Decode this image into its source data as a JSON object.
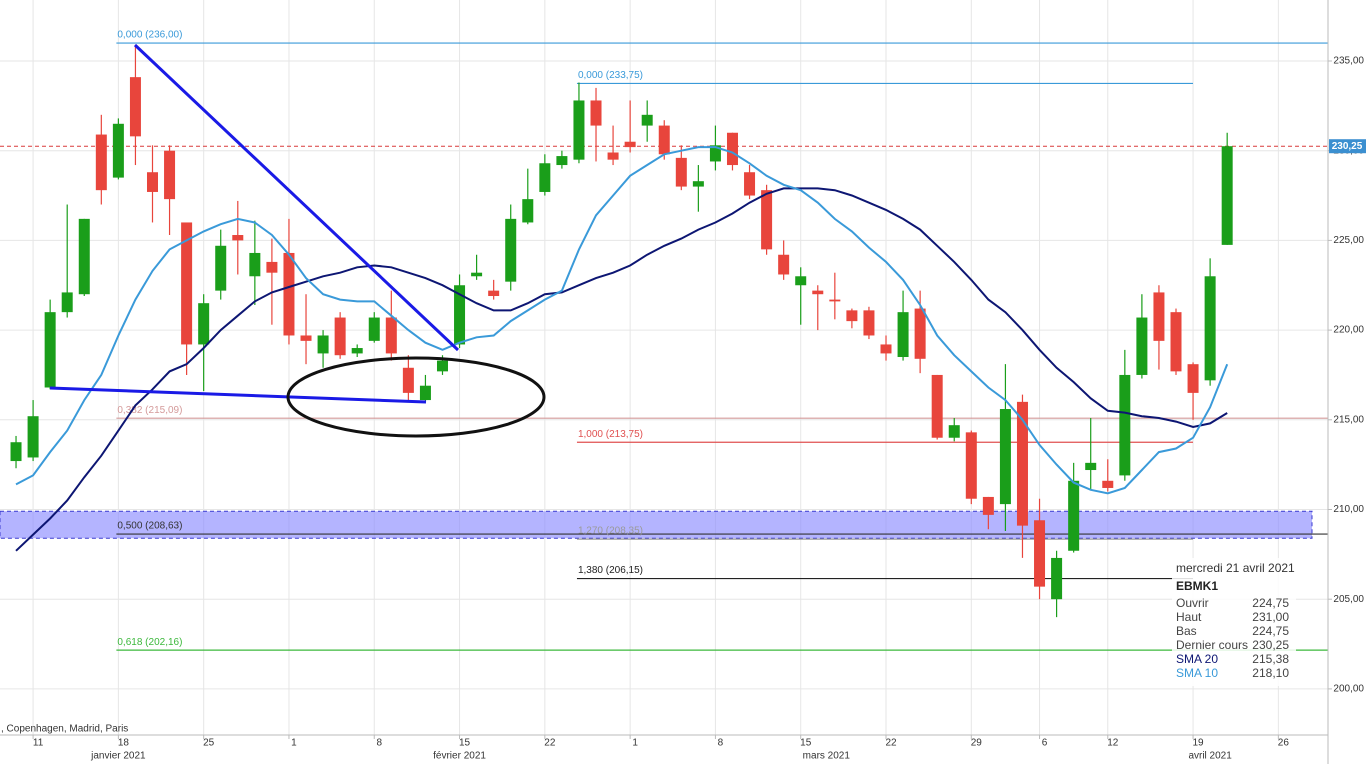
{
  "chart_data": {
    "type": "candlestick",
    "categories": [
      null,
      "11",
      null,
      null,
      null,
      null,
      "18",
      null,
      null,
      null,
      null,
      "25",
      null,
      null,
      null,
      null,
      "1",
      null,
      null,
      null,
      null,
      "8",
      null,
      null,
      null,
      null,
      "15",
      null,
      null,
      null,
      null,
      "22",
      null,
      null,
      null,
      null,
      "1",
      null,
      null,
      null,
      null,
      "8",
      null,
      null,
      null,
      null,
      "15",
      null,
      null,
      null,
      null,
      "22",
      null,
      null,
      null,
      null,
      "29",
      null,
      null,
      null,
      "6",
      null,
      null,
      null,
      "12",
      null,
      null,
      null,
      null,
      "19",
      null,
      null,
      null,
      null,
      "26",
      null,
      null
    ],
    "months": [
      "janvier 2021",
      "février 2021",
      "mars 2021",
      "avril 2021"
    ],
    "open": [
      212.7,
      212.9,
      216.8,
      221.0,
      222.0,
      230.9,
      228.5,
      234.1,
      228.8,
      230.0,
      226.0,
      219.2,
      222.2,
      225.3,
      223.0,
      223.8,
      224.3,
      219.7,
      218.7,
      220.7,
      218.7,
      219.4,
      220.7,
      217.9,
      216.1,
      217.7,
      219.2,
      223.0,
      222.2,
      222.7,
      226.0,
      227.7,
      229.2,
      229.5,
      232.8,
      229.9,
      230.5,
      231.4,
      231.4,
      229.6,
      228.0,
      229.4,
      231.0,
      228.8,
      227.8,
      224.2,
      222.5,
      222.2,
      221.7,
      221.1,
      221.1,
      219.2,
      218.5,
      221.2,
      217.5,
      214.0,
      214.3,
      210.7,
      210.3,
      216.0,
      209.4,
      205.0,
      207.7,
      212.2,
      211.6,
      211.9,
      217.5,
      222.1,
      221.0,
      218.1,
      217.2,
      224.75,
      null,
      null,
      null,
      null,
      null
    ],
    "high": [
      214.1,
      216.1,
      221.7,
      227.0,
      226.2,
      232.0,
      231.8,
      235.9,
      230.3,
      230.3,
      226.0,
      222.0,
      225.6,
      227.2,
      226.1,
      225.1,
      226.2,
      222.0,
      220.0,
      221.0,
      219.2,
      221.0,
      222.2,
      218.6,
      217.5,
      218.6,
      223.1,
      224.2,
      222.8,
      227.0,
      229.0,
      229.8,
      230.0,
      233.8,
      233.5,
      231.4,
      232.8,
      232.8,
      231.7,
      230.3,
      229.2,
      231.4,
      231.0,
      229.2,
      228.1,
      225.0,
      223.5,
      222.5,
      223.2,
      221.2,
      221.3,
      219.7,
      222.2,
      222.2,
      217.5,
      215.1,
      214.4,
      210.7,
      218.1,
      216.4,
      210.6,
      207.7,
      212.6,
      215.1,
      212.8,
      218.9,
      222.0,
      222.5,
      221.2,
      218.2,
      224.0,
      231.0,
      null,
      null,
      null,
      null,
      null
    ],
    "low": [
      212.3,
      212.7,
      216.7,
      220.7,
      221.9,
      227.0,
      228.4,
      229.2,
      226.0,
      225.3,
      217.5,
      216.6,
      221.7,
      223.1,
      221.4,
      220.3,
      219.2,
      218.1,
      217.9,
      218.4,
      218.5,
      219.3,
      218.3,
      216.1,
      216.0,
      217.5,
      219.0,
      222.8,
      221.7,
      222.2,
      225.9,
      227.5,
      229.0,
      229.3,
      229.4,
      229.2,
      229.9,
      230.5,
      229.5,
      227.8,
      226.6,
      228.9,
      228.9,
      227.3,
      224.2,
      222.8,
      220.3,
      220.0,
      220.6,
      220.1,
      219.5,
      218.3,
      218.3,
      217.6,
      213.9,
      213.8,
      210.3,
      208.9,
      208.8,
      207.3,
      205.0,
      204.0,
      207.6,
      211.1,
      211.0,
      211.6,
      217.3,
      217.8,
      217.5,
      215.0,
      216.9,
      224.75,
      null,
      null,
      null,
      null,
      null
    ],
    "close": [
      213.75,
      215.2,
      221.0,
      222.1,
      226.2,
      227.8,
      231.5,
      230.8,
      227.7,
      227.3,
      219.2,
      221.5,
      224.7,
      225.0,
      224.3,
      223.2,
      219.7,
      219.4,
      219.7,
      218.6,
      219.0,
      220.7,
      218.7,
      216.5,
      216.9,
      218.3,
      222.5,
      223.2,
      221.9,
      226.2,
      227.3,
      229.3,
      229.7,
      232.8,
      231.4,
      229.5,
      230.2,
      232.0,
      229.8,
      228.0,
      228.3,
      230.3,
      229.2,
      227.5,
      224.5,
      223.1,
      223.0,
      222.0,
      221.6,
      220.5,
      219.7,
      218.7,
      221.0,
      218.4,
      214.0,
      214.7,
      210.6,
      209.7,
      215.6,
      209.1,
      205.7,
      207.3,
      211.6,
      212.6,
      211.2,
      217.5,
      220.7,
      219.4,
      217.7,
      216.5,
      223.0,
      230.25,
      null,
      null,
      null,
      null,
      null
    ],
    "up_color": "#1a9e1a",
    "down_color": "#e8453c",
    "series": [
      {
        "name": "SMA 20",
        "color": "#0d1673",
        "values": [
          207.7,
          208.6,
          209.5,
          210.5,
          211.8,
          213.0,
          214.4,
          215.8,
          216.7,
          217.7,
          218.1,
          219.0,
          220.0,
          220.8,
          221.6,
          222.1,
          222.4,
          222.7,
          223.0,
          223.2,
          223.5,
          223.6,
          223.5,
          223.2,
          222.9,
          222.5,
          222.0,
          221.5,
          221.1,
          221.1,
          221.5,
          222.0,
          222.1,
          222.5,
          222.9,
          223.2,
          223.6,
          224.2,
          224.7,
          225.1,
          225.6,
          226.0,
          226.5,
          227.1,
          227.6,
          227.9,
          227.9,
          227.9,
          227.8,
          227.5,
          227.1,
          226.7,
          226.2,
          225.6,
          224.7,
          223.8,
          222.8,
          221.7,
          221.0,
          220.0,
          218.9,
          217.9,
          217.1,
          216.2,
          215.5,
          215.4,
          215.2,
          215.1,
          214.9,
          214.6,
          214.8,
          215.38,
          null,
          null,
          null,
          null,
          null
        ]
      },
      {
        "name": "SMA 10",
        "color": "#3a9ad9",
        "values": [
          211.4,
          211.9,
          213.2,
          214.4,
          216.1,
          217.5,
          219.7,
          221.7,
          223.3,
          224.5,
          225.0,
          225.5,
          225.9,
          226.2,
          226.0,
          225.3,
          224.2,
          222.9,
          222.0,
          221.7,
          221.6,
          221.6,
          220.8,
          220.0,
          219.3,
          218.9,
          219.3,
          219.6,
          219.7,
          220.5,
          221.1,
          221.7,
          222.2,
          224.5,
          226.4,
          227.5,
          228.6,
          229.2,
          229.8,
          230.0,
          230.2,
          230.2,
          229.9,
          229.3,
          228.6,
          228.1,
          227.8,
          227.1,
          226.2,
          225.5,
          224.6,
          223.8,
          222.8,
          221.4,
          219.7,
          218.6,
          217.7,
          216.8,
          216.1,
          215.0,
          213.6,
          212.5,
          211.5,
          211.1,
          210.9,
          211.2,
          212.2,
          213.2,
          213.4,
          214.0,
          215.7,
          218.1,
          null,
          null,
          null,
          null,
          null
        ]
      }
    ],
    "ylim": [
      197.43,
      238.4
    ],
    "yticks": [
      {
        "value": 200,
        "label": "200,00"
      },
      {
        "value": 205,
        "label": "205,00"
      },
      {
        "value": 210,
        "label": "210,00"
      },
      {
        "value": 215,
        "label": "215,00"
      },
      {
        "value": 220,
        "label": "220,00"
      },
      {
        "value": 225,
        "label": "225,00"
      },
      {
        "value": 230,
        "label": "230,00"
      },
      {
        "value": 235,
        "label": "235,00"
      }
    ],
    "grid": true,
    "levels": [
      {
        "label": "0,000 (236,00)",
        "value": 236.0,
        "color": "#3a9ad9"
      },
      {
        "label": "0,000 (233,75)",
        "value": 233.75,
        "color": "#3a9ad9"
      },
      {
        "label": "0,382 (215,09)",
        "value": 215.09,
        "color": "#d49a9a"
      },
      {
        "label": "1,000 (213,75)",
        "value": 213.75,
        "color": "#e05050"
      },
      {
        "label": "0,500 (208,63)",
        "value": 208.63,
        "color": "#333333"
      },
      {
        "label": "1,270 (208,35)",
        "value": 208.35,
        "color": "#9a9a9a"
      },
      {
        "label": "1,380 (206,15)",
        "value": 206.15,
        "color": "#222222"
      },
      {
        "label": "0,618 (202,16)",
        "value": 202.16,
        "color": "#3cb83c"
      }
    ],
    "zone": [
      208.4,
      209.9
    ],
    "zone_color": "#8c8cff",
    "last_price": 230.25,
    "last_price_label": "230,25",
    "last_price_color": "#d93a3a",
    "exchange_note": ", Copenhagen, Madrid, Paris",
    "info_panel": {
      "date": "mercredi 21 avril 2021",
      "symbol": "EBMK1",
      "rows": [
        {
          "label": "Ouvrir",
          "value": "224,75"
        },
        {
          "label": "Haut",
          "value": "231,00"
        },
        {
          "label": "Bas",
          "value": "224,75"
        },
        {
          "label": "Dernier cours",
          "value": "230,25"
        }
      ],
      "sma_values": [
        "215,38",
        "218,10"
      ]
    }
  }
}
